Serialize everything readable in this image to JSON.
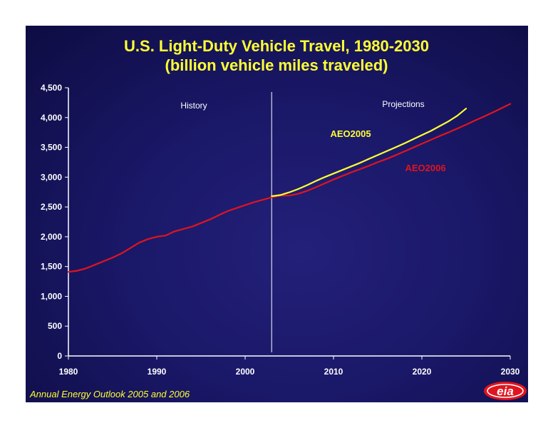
{
  "colors": {
    "title": "#ffff33",
    "aeo2005": "#ffff33",
    "aeo2006": "#e0141e",
    "axis": "#ffffff",
    "background": "#1a1868"
  },
  "chart_data": {
    "type": "line",
    "title": "U.S. Light-Duty Vehicle Travel, 1980-2030",
    "subtitle": "(billion vehicle miles traveled)",
    "xlim": [
      1980,
      2030
    ],
    "ylim": [
      0,
      4500
    ],
    "x_ticks": [
      "1980",
      "1990",
      "2000",
      "2010",
      "2020",
      "2030"
    ],
    "y_ticks": [
      "0",
      "500",
      "1,000",
      "1,500",
      "2,000",
      "2,500",
      "3,000",
      "3,500",
      "4,000",
      "4,500"
    ],
    "y_tick_values": [
      0,
      500,
      1000,
      1500,
      2000,
      2500,
      3000,
      3500,
      4000,
      4500
    ],
    "x_tick_values": [
      1980,
      1990,
      2000,
      2010,
      2020,
      2030
    ],
    "divider_year": 2003,
    "annotations": {
      "history": "History",
      "projections": "Projections"
    },
    "series": [
      {
        "name": "AEO2005",
        "color": "#ffff33",
        "x": [
          2003,
          2004,
          2005,
          2006,
          2007,
          2008,
          2009,
          2010,
          2011,
          2012,
          2013,
          2014,
          2015,
          2016,
          2017,
          2018,
          2019,
          2020,
          2021,
          2022,
          2023,
          2024,
          2025
        ],
        "values": [
          2680,
          2700,
          2745,
          2800,
          2865,
          2935,
          3000,
          3060,
          3120,
          3180,
          3240,
          3305,
          3370,
          3435,
          3500,
          3565,
          3635,
          3705,
          3775,
          3855,
          3935,
          4030,
          4150
        ]
      },
      {
        "name": "AEO2006",
        "color": "#e0141e",
        "x": [
          1980,
          1981,
          1982,
          1983,
          1984,
          1985,
          1986,
          1987,
          1988,
          1989,
          1990,
          1991,
          1992,
          1993,
          1994,
          1995,
          1996,
          1997,
          1998,
          1999,
          2000,
          2001,
          2002,
          2003,
          2004,
          2005,
          2006,
          2007,
          2008,
          2009,
          2010,
          2011,
          2012,
          2013,
          2014,
          2015,
          2016,
          2017,
          2018,
          2019,
          2020,
          2021,
          2022,
          2023,
          2024,
          2025,
          2026,
          2027,
          2028,
          2029,
          2030
        ],
        "values": [
          1410,
          1430,
          1470,
          1530,
          1590,
          1650,
          1720,
          1810,
          1900,
          1960,
          2000,
          2020,
          2090,
          2130,
          2170,
          2230,
          2290,
          2360,
          2430,
          2480,
          2530,
          2580,
          2620,
          2660,
          2690,
          2690,
          2720,
          2770,
          2830,
          2895,
          2960,
          3020,
          3080,
          3135,
          3190,
          3250,
          3305,
          3365,
          3430,
          3495,
          3560,
          3625,
          3690,
          3750,
          3815,
          3880,
          3950,
          4015,
          4085,
          4155,
          4230
        ]
      }
    ]
  },
  "footer": {
    "source": "Annual Energy Outlook 2005 and 2006",
    "logo": "eia"
  }
}
